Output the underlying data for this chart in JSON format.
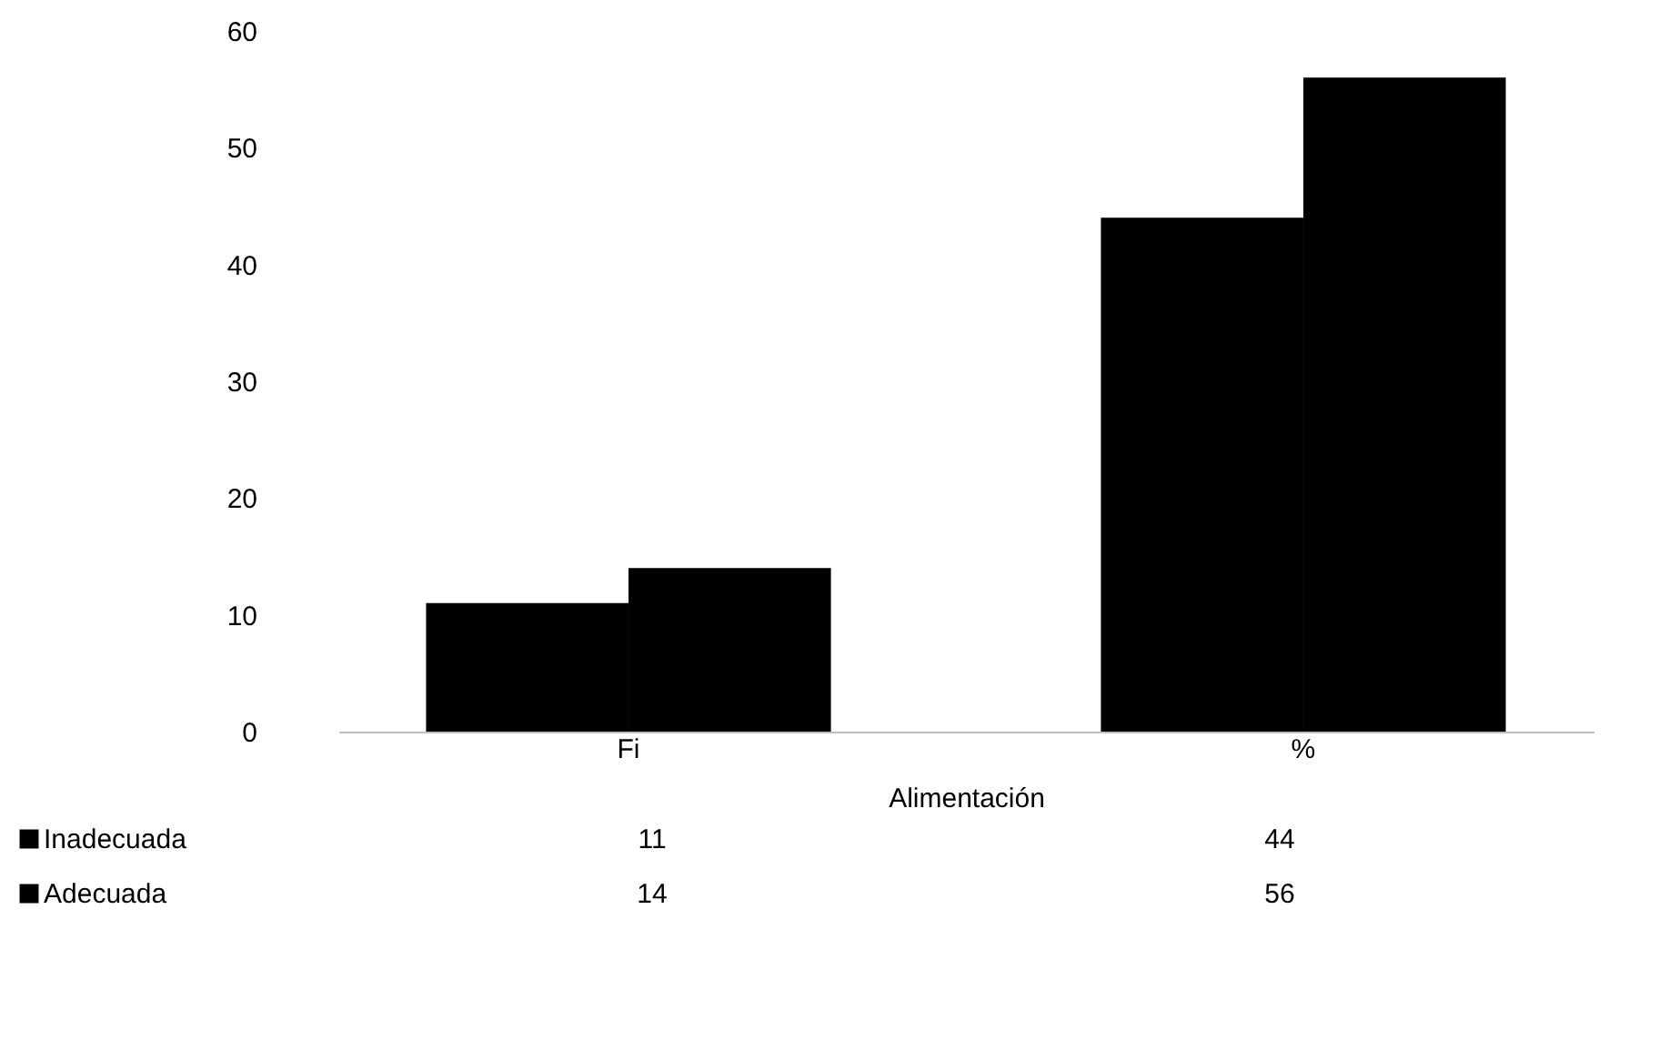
{
  "chart_data": {
    "type": "bar",
    "xlabel": "Alimentación",
    "categories": [
      "Fi",
      "%"
    ],
    "series": [
      {
        "name": "Inadecuada",
        "color": "#000000",
        "values": [
          11,
          44
        ]
      },
      {
        "name": "Adecuada",
        "color": "#000000",
        "values": [
          14,
          56
        ]
      }
    ],
    "ylim": [
      0,
      60
    ],
    "yticks": [
      0,
      10,
      20,
      30,
      40,
      50,
      60
    ],
    "grid": false,
    "legend": "bottom",
    "data_labels": true
  }
}
